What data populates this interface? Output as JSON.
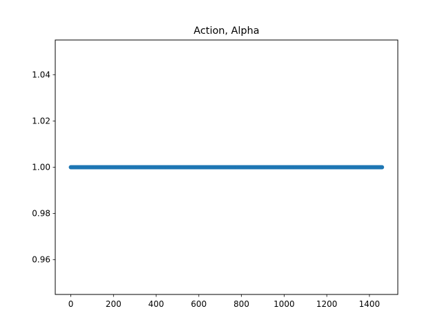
{
  "chart_data": {
    "type": "scatter",
    "title": "Action, Alpha",
    "xlabel": "",
    "ylabel": "",
    "xlim": [
      -73,
      1533
    ],
    "ylim": [
      0.945,
      1.055
    ],
    "x_ticks": [
      0,
      200,
      400,
      600,
      800,
      1000,
      1200,
      1400
    ],
    "x_tick_labels": [
      "0",
      "200",
      "400",
      "600",
      "800",
      "1000",
      "1200",
      "1400"
    ],
    "y_ticks": [
      0.96,
      0.98,
      1.0,
      1.02,
      1.04
    ],
    "y_tick_labels": [
      "0.96",
      "0.98",
      "1.00",
      "1.02",
      "1.04"
    ],
    "grid": false,
    "series": [
      {
        "color": "#1f77b4",
        "x_start": 0,
        "x_end": 1459,
        "x_step": 1,
        "y_constant": 1.0
      }
    ]
  }
}
